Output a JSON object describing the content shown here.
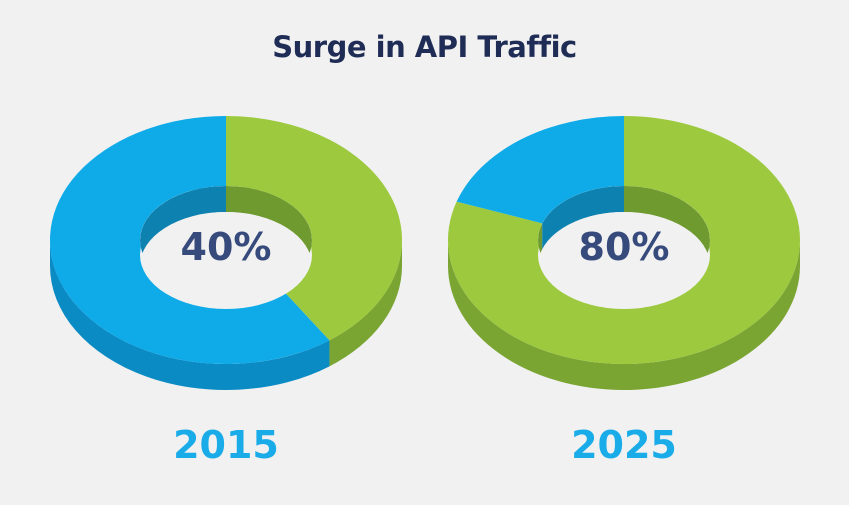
{
  "title": "Surge in API Traffic",
  "colors": {
    "api": "#9cc93e",
    "api_dark": "#7aa532",
    "api_inner": "#6e9a2f",
    "other": "#0fabe9",
    "other_dark": "#0a8bc4",
    "other_inner": "#0d82b1",
    "title": "#1f2c55",
    "center_text": "#364a7c",
    "year_text": "#1aace8",
    "background": "#f1f1f1"
  },
  "chart_data": [
    {
      "type": "pie",
      "year": "2015",
      "center_label": "40%",
      "slices": [
        {
          "value": 40,
          "color_key": "api"
        },
        {
          "value": 60,
          "color_key": "other"
        }
      ]
    },
    {
      "type": "pie",
      "year": "2025",
      "center_label": "80%",
      "slices": [
        {
          "value": 80,
          "color_key": "api"
        },
        {
          "value": 20,
          "color_key": "other"
        }
      ]
    }
  ]
}
